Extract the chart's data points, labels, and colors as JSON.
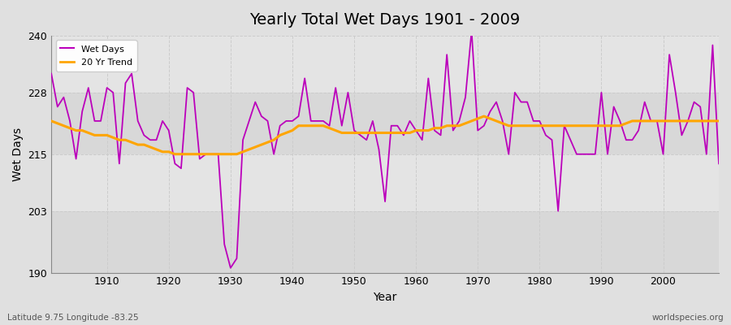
{
  "title": "Yearly Total Wet Days 1901 - 2009",
  "xlabel": "Year",
  "ylabel": "Wet Days",
  "footnote_left": "Latitude 9.75 Longitude -83.25",
  "footnote_right": "worldspecies.org",
  "ylim": [
    190,
    240
  ],
  "yticks": [
    190,
    203,
    215,
    228,
    240
  ],
  "xlim": [
    1901,
    2009
  ],
  "xticks": [
    1910,
    1920,
    1930,
    1940,
    1950,
    1960,
    1970,
    1980,
    1990,
    2000
  ],
  "line_color": "#bb00bb",
  "trend_color": "#FFA500",
  "bg_outer": "#e0e0e0",
  "wet_days": {
    "1901": 232,
    "1902": 225,
    "1903": 227,
    "1904": 222,
    "1905": 214,
    "1906": 224,
    "1907": 229,
    "1908": 222,
    "1909": 222,
    "1910": 229,
    "1911": 228,
    "1912": 213,
    "1913": 230,
    "1914": 232,
    "1915": 222,
    "1916": 219,
    "1917": 218,
    "1918": 218,
    "1919": 222,
    "1920": 220,
    "1921": 213,
    "1922": 212,
    "1923": 229,
    "1924": 228,
    "1925": 214,
    "1926": 215,
    "1927": 215,
    "1928": 215,
    "1929": 196,
    "1930": 191,
    "1931": 193,
    "1932": 218,
    "1933": 222,
    "1934": 226,
    "1935": 223,
    "1936": 222,
    "1937": 215,
    "1938": 221,
    "1939": 222,
    "1940": 222,
    "1941": 223,
    "1942": 231,
    "1943": 222,
    "1944": 222,
    "1945": 222,
    "1946": 221,
    "1947": 229,
    "1948": 221,
    "1949": 228,
    "1950": 220,
    "1951": 219,
    "1952": 218,
    "1953": 222,
    "1954": 216,
    "1955": 205,
    "1956": 221,
    "1957": 221,
    "1958": 219,
    "1959": 222,
    "1960": 220,
    "1961": 218,
    "1962": 231,
    "1963": 220,
    "1964": 219,
    "1965": 236,
    "1966": 220,
    "1967": 222,
    "1968": 227,
    "1969": 241,
    "1970": 220,
    "1971": 221,
    "1972": 224,
    "1973": 226,
    "1974": 222,
    "1975": 215,
    "1976": 228,
    "1977": 226,
    "1978": 226,
    "1979": 222,
    "1980": 222,
    "1981": 219,
    "1982": 218,
    "1983": 203,
    "1984": 221,
    "1985": 218,
    "1986": 215,
    "1987": 215,
    "1988": 215,
    "1989": 215,
    "1990": 228,
    "1991": 215,
    "1992": 225,
    "1993": 222,
    "1994": 218,
    "1995": 218,
    "1996": 220,
    "1997": 226,
    "1998": 222,
    "1999": 222,
    "2000": 215,
    "2001": 236,
    "2002": 228,
    "2003": 219,
    "2004": 222,
    "2005": 226,
    "2006": 225,
    "2007": 215,
    "2008": 238,
    "2009": 213
  },
  "trend_days": {
    "1901": 222,
    "1902": 221.5,
    "1903": 221,
    "1904": 220.5,
    "1905": 220,
    "1906": 220,
    "1907": 219.5,
    "1908": 219,
    "1909": 219,
    "1910": 219,
    "1911": 218.5,
    "1912": 218,
    "1913": 218,
    "1914": 217.5,
    "1915": 217,
    "1916": 217,
    "1917": 216.5,
    "1918": 216,
    "1919": 215.5,
    "1920": 215.5,
    "1921": 215,
    "1922": 215,
    "1923": 215,
    "1924": 215,
    "1925": 215,
    "1926": 215,
    "1927": 215,
    "1928": 215,
    "1929": 215,
    "1930": 215,
    "1931": 215,
    "1932": 215.5,
    "1933": 216,
    "1934": 216.5,
    "1935": 217,
    "1936": 217.5,
    "1937": 218,
    "1938": 219,
    "1939": 219.5,
    "1940": 220,
    "1941": 221,
    "1942": 221,
    "1943": 221,
    "1944": 221,
    "1945": 221,
    "1946": 220.5,
    "1947": 220,
    "1948": 219.5,
    "1949": 219.5,
    "1950": 219.5,
    "1951": 219.5,
    "1952": 219.5,
    "1953": 219.5,
    "1954": 219.5,
    "1955": 219.5,
    "1956": 219.5,
    "1957": 219.5,
    "1958": 219.5,
    "1959": 219.5,
    "1960": 220,
    "1961": 220,
    "1962": 220,
    "1963": 220.5,
    "1964": 220.5,
    "1965": 221,
    "1966": 221,
    "1967": 221,
    "1968": 221.5,
    "1969": 222,
    "1970": 222.5,
    "1971": 223,
    "1972": 222.5,
    "1973": 222,
    "1974": 221.5,
    "1975": 221,
    "1976": 221,
    "1977": 221,
    "1978": 221,
    "1979": 221,
    "1980": 221,
    "1981": 221,
    "1982": 221,
    "1983": 221,
    "1984": 221,
    "1985": 221,
    "1986": 221,
    "1987": 221,
    "1988": 221,
    "1989": 221,
    "1990": 221,
    "1991": 221,
    "1992": 221,
    "1993": 221,
    "1994": 221.5,
    "1995": 222,
    "1996": 222,
    "1997": 222,
    "1998": 222,
    "1999": 222,
    "2000": 222,
    "2001": 222,
    "2002": 222,
    "2003": 222,
    "2004": 222,
    "2005": 222,
    "2006": 222,
    "2007": 222,
    "2008": 222,
    "2009": 222
  },
  "band_colors": [
    "#dcdcdc",
    "#e8e8e8",
    "#dcdcdc",
    "#e8e8e8"
  ],
  "grid_color": "#cccccc",
  "title_fontsize": 14,
  "axis_fontsize": 9,
  "footnote_fontsize": 7.5
}
